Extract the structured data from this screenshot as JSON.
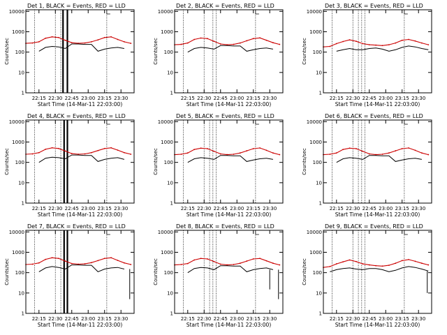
{
  "figure": {
    "xlabel": "Start Time (14-Mar-11 22:03:00)",
    "ylabel": "Counts/sec",
    "x_tick_labels": [
      "22:15",
      "22:30",
      "22:45",
      "23:00",
      "23:15",
      "23:30"
    ],
    "y_tick_labels": [
      "1",
      "10",
      "100",
      "1000",
      "10000"
    ],
    "colors": {
      "events": "#000000",
      "lld": "#cc0000",
      "markers": "#000000",
      "frame": "#000000"
    }
  },
  "chart_data": [
    {
      "type": "line",
      "title": "Det 1, BLACK = Events, RED = LLD",
      "xlabel": "Start Time (14-Mar-11 22:03:00)",
      "ylabel": "Counts/sec",
      "yscale": "log",
      "ylim": [
        1,
        12000
      ],
      "x": [
        "22:03",
        "22:09",
        "22:15",
        "22:21",
        "22:27",
        "22:33",
        "22:39",
        "22:45",
        "22:51",
        "22:57",
        "23:03",
        "23:09",
        "23:15",
        "23:21",
        "23:27",
        "23:33",
        "23:39"
      ],
      "series": [
        {
          "name": "LLD",
          "color": "#cc0000",
          "values": [
            270,
            280,
            320,
            480,
            560,
            520,
            380,
            290,
            270,
            280,
            320,
            400,
            520,
            560,
            420,
            320,
            270
          ]
        },
        {
          "name": "Events",
          "color": "#000000",
          "values": [
            null,
            null,
            110,
            170,
            190,
            180,
            150,
            250,
            250,
            240,
            240,
            110,
            140,
            160,
            170,
            150,
            null
          ]
        }
      ],
      "thin_markers": [
        "22:11",
        "22:30",
        "22:35",
        "23:17"
      ],
      "thick_markers": [
        "22:37",
        "22:41"
      ],
      "spikes": []
    },
    {
      "type": "line",
      "title": "Det 2, BLACK = Events, RED = LLD",
      "xlabel": "Start Time (14-Mar-11 22:03:00)",
      "ylabel": "Counts/sec",
      "yscale": "log",
      "ylim": [
        1,
        12000
      ],
      "x": [
        "22:03",
        "22:09",
        "22:15",
        "22:21",
        "22:27",
        "22:33",
        "22:39",
        "22:45",
        "22:51",
        "22:57",
        "23:03",
        "23:09",
        "23:15",
        "23:21",
        "23:27",
        "23:33",
        "23:39"
      ],
      "series": [
        {
          "name": "LLD",
          "color": "#cc0000",
          "values": [
            230,
            240,
            280,
            420,
            490,
            460,
            340,
            250,
            230,
            240,
            280,
            360,
            460,
            500,
            380,
            290,
            240
          ]
        },
        {
          "name": "Events",
          "color": "#000000",
          "values": [
            null,
            null,
            100,
            150,
            170,
            160,
            140,
            210,
            210,
            200,
            200,
            110,
            130,
            150,
            160,
            140,
            null
          ]
        }
      ],
      "thin_markers": [
        "22:11",
        "22:30",
        "22:38",
        "22:41",
        "23:17"
      ],
      "thick_markers": [],
      "spikes": []
    },
    {
      "type": "line",
      "title": "Det 3, BLACK = Events, RED = LLD",
      "xlabel": "Start Time (14-Mar-11 22:03:00)",
      "ylabel": "Counts/sec",
      "yscale": "log",
      "ylim": [
        1,
        12000
      ],
      "x": [
        "22:03",
        "22:09",
        "22:15",
        "22:21",
        "22:27",
        "22:33",
        "22:39",
        "22:45",
        "22:51",
        "22:57",
        "23:03",
        "23:09",
        "23:15",
        "23:21",
        "23:27",
        "23:33",
        "23:39"
      ],
      "series": [
        {
          "name": "LLD",
          "color": "#cc0000",
          "values": [
            180,
            190,
            260,
            330,
            400,
            340,
            260,
            230,
            220,
            210,
            230,
            280,
            380,
            420,
            350,
            280,
            230
          ]
        },
        {
          "name": "Events",
          "color": "#000000",
          "values": [
            null,
            null,
            110,
            130,
            150,
            130,
            130,
            150,
            160,
            140,
            110,
            130,
            170,
            200,
            180,
            150,
            130
          ]
        }
      ],
      "thin_markers": [
        "22:11",
        "22:30",
        "22:35",
        "22:38",
        "22:41",
        "23:17"
      ],
      "thick_markers": [],
      "spikes": []
    },
    {
      "type": "line",
      "title": "Det 4, BLACK = Events, RED = LLD",
      "xlabel": "Start Time (14-Mar-11 22:03:00)",
      "ylabel": "Counts/sec",
      "yscale": "log",
      "ylim": [
        1,
        12000
      ],
      "x": [
        "22:03",
        "22:09",
        "22:15",
        "22:21",
        "22:27",
        "22:33",
        "22:39",
        "22:45",
        "22:51",
        "22:57",
        "23:03",
        "23:09",
        "23:15",
        "23:21",
        "23:27",
        "23:33",
        "23:39"
      ],
      "series": [
        {
          "name": "LLD",
          "color": "#cc0000",
          "values": [
            250,
            260,
            300,
            440,
            520,
            480,
            360,
            270,
            250,
            260,
            300,
            380,
            480,
            520,
            400,
            300,
            250
          ]
        },
        {
          "name": "Events",
          "color": "#000000",
          "values": [
            null,
            null,
            100,
            160,
            180,
            170,
            150,
            230,
            230,
            220,
            220,
            110,
            140,
            160,
            170,
            140,
            null
          ]
        }
      ],
      "thin_markers": [
        "22:11",
        "22:30",
        "22:35",
        "23:17"
      ],
      "thick_markers": [
        "22:38",
        "22:41"
      ],
      "spikes": []
    },
    {
      "type": "line",
      "title": "Det 5, BLACK = Events, RED = LLD",
      "xlabel": "Start Time (14-Mar-11 22:03:00)",
      "ylabel": "Counts/sec",
      "yscale": "log",
      "ylim": [
        1,
        12000
      ],
      "x": [
        "22:03",
        "22:09",
        "22:15",
        "22:21",
        "22:27",
        "22:33",
        "22:39",
        "22:45",
        "22:51",
        "22:57",
        "23:03",
        "23:09",
        "23:15",
        "23:21",
        "23:27",
        "23:33",
        "23:39"
      ],
      "series": [
        {
          "name": "LLD",
          "color": "#cc0000",
          "values": [
            240,
            250,
            290,
            430,
            500,
            470,
            350,
            260,
            240,
            250,
            290,
            370,
            470,
            510,
            390,
            290,
            240
          ]
        },
        {
          "name": "Events",
          "color": "#000000",
          "values": [
            null,
            null,
            100,
            150,
            170,
            160,
            140,
            220,
            220,
            210,
            210,
            110,
            130,
            150,
            160,
            140,
            null
          ]
        }
      ],
      "thin_markers": [
        "22:11",
        "22:30",
        "22:35",
        "22:38",
        "22:41",
        "23:17"
      ],
      "thick_markers": [],
      "spikes": []
    },
    {
      "type": "line",
      "title": "Det 6, BLACK = Events, RED = LLD",
      "xlabel": "Start Time (14-Mar-11 22:03:00)",
      "ylabel": "Counts/sec",
      "yscale": "log",
      "ylim": [
        1,
        12000
      ],
      "x": [
        "22:03",
        "22:09",
        "22:15",
        "22:21",
        "22:27",
        "22:33",
        "22:39",
        "22:45",
        "22:51",
        "22:57",
        "23:03",
        "23:09",
        "23:15",
        "23:21",
        "23:27",
        "23:33",
        "23:39"
      ],
      "series": [
        {
          "name": "LLD",
          "color": "#cc0000",
          "values": [
            240,
            250,
            290,
            430,
            500,
            470,
            350,
            260,
            240,
            250,
            290,
            370,
            470,
            510,
            390,
            290,
            240
          ]
        },
        {
          "name": "Events",
          "color": "#000000",
          "values": [
            null,
            null,
            100,
            150,
            170,
            160,
            140,
            220,
            220,
            210,
            210,
            110,
            130,
            150,
            160,
            140,
            null
          ]
        }
      ],
      "thin_markers": [
        "22:11",
        "22:30",
        "22:35",
        "22:38",
        "22:41",
        "23:17"
      ],
      "thick_markers": [],
      "spikes": []
    },
    {
      "type": "line",
      "title": "Det 7, BLACK = Events, RED = LLD",
      "xlabel": "Start Time (14-Mar-11 22:03:00)",
      "ylabel": "Counts/sec",
      "yscale": "log",
      "ylim": [
        1,
        12000
      ],
      "x": [
        "22:03",
        "22:09",
        "22:15",
        "22:21",
        "22:27",
        "22:33",
        "22:39",
        "22:45",
        "22:51",
        "22:57",
        "23:03",
        "23:09",
        "23:15",
        "23:21",
        "23:27",
        "23:33",
        "23:39"
      ],
      "series": [
        {
          "name": "LLD",
          "color": "#cc0000",
          "values": [
            250,
            260,
            300,
            450,
            540,
            500,
            370,
            280,
            260,
            270,
            310,
            390,
            500,
            540,
            400,
            300,
            250
          ]
        },
        {
          "name": "Events",
          "color": "#000000",
          "values": [
            null,
            null,
            110,
            170,
            200,
            180,
            150,
            240,
            240,
            230,
            230,
            110,
            150,
            170,
            180,
            150,
            null
          ]
        }
      ],
      "thin_markers": [
        "22:11",
        "22:30",
        "22:35",
        "23:17"
      ],
      "thick_markers": [
        "22:38",
        "22:41"
      ],
      "spikes": [
        {
          "x": "23:38",
          "value": 5
        }
      ]
    },
    {
      "type": "line",
      "title": "Det 8, BLACK = Events, RED = LLD",
      "xlabel": "Start Time (14-Mar-11 22:03:00)",
      "ylabel": "Counts/sec",
      "yscale": "log",
      "ylim": [
        1,
        12000
      ],
      "x": [
        "22:03",
        "22:09",
        "22:15",
        "22:21",
        "22:27",
        "22:33",
        "22:39",
        "22:45",
        "22:51",
        "22:57",
        "23:03",
        "23:09",
        "23:15",
        "23:21",
        "23:27",
        "23:33",
        "23:39"
      ],
      "series": [
        {
          "name": "LLD",
          "color": "#cc0000",
          "values": [
            240,
            250,
            280,
            420,
            500,
            470,
            350,
            260,
            240,
            250,
            290,
            370,
            470,
            500,
            380,
            290,
            240
          ]
        },
        {
          "name": "Events",
          "color": "#000000",
          "values": [
            null,
            null,
            100,
            160,
            180,
            170,
            140,
            220,
            220,
            210,
            210,
            110,
            140,
            160,
            170,
            140,
            null
          ]
        }
      ],
      "thin_markers": [
        "22:11",
        "22:30",
        "22:35",
        "22:38",
        "22:41",
        "23:17"
      ],
      "thick_markers": [],
      "spikes": [
        {
          "x": "23:30",
          "value": 15
        },
        {
          "x": "23:38",
          "value": 5
        }
      ]
    },
    {
      "type": "line",
      "title": "Det 9, BLACK = Events, RED = LLD",
      "xlabel": "Start Time (14-Mar-11 22:03:00)",
      "ylabel": "Counts/sec",
      "yscale": "log",
      "ylim": [
        1,
        12000
      ],
      "x": [
        "22:03",
        "22:09",
        "22:15",
        "22:21",
        "22:27",
        "22:33",
        "22:39",
        "22:45",
        "22:51",
        "22:57",
        "23:03",
        "23:09",
        "23:15",
        "23:21",
        "23:27",
        "23:33",
        "23:39"
      ],
      "series": [
        {
          "name": "LLD",
          "color": "#cc0000",
          "values": [
            180,
            200,
            270,
            340,
            420,
            350,
            270,
            240,
            220,
            210,
            230,
            290,
            390,
            440,
            360,
            290,
            240
          ]
        },
        {
          "name": "Events",
          "color": "#000000",
          "values": [
            null,
            110,
            140,
            160,
            170,
            150,
            140,
            160,
            160,
            140,
            110,
            130,
            170,
            200,
            180,
            150,
            120
          ]
        }
      ],
      "thin_markers": [
        "22:11",
        "22:30",
        "22:35",
        "22:38",
        "22:41",
        "23:17"
      ],
      "thick_markers": [],
      "spikes": [
        {
          "x": "23:38",
          "value": 10
        }
      ]
    }
  ]
}
